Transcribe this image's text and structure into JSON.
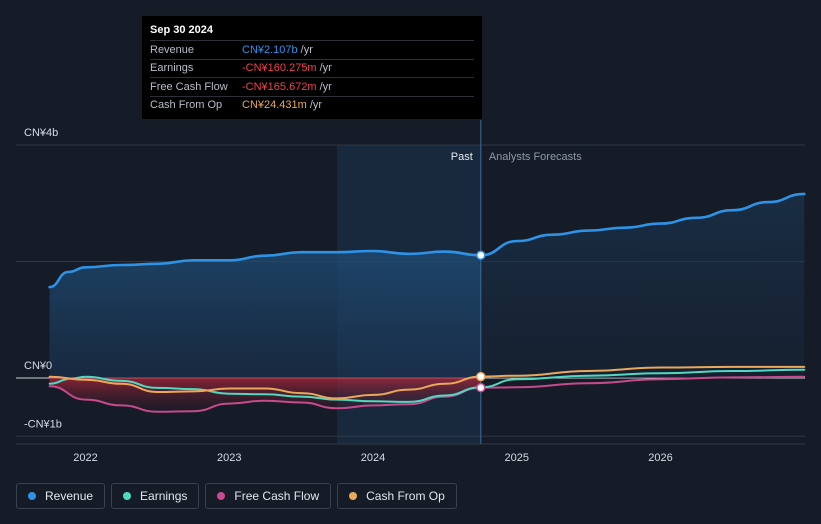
{
  "tooltip": {
    "date": "Sep 30 2024",
    "rows": [
      {
        "label": "Revenue",
        "value": "CN¥2.107b",
        "unit": "/yr",
        "color": "#2e93e6"
      },
      {
        "label": "Earnings",
        "value": "-CN¥160.275m",
        "unit": "/yr",
        "color": "#f0414b"
      },
      {
        "label": "Free Cash Flow",
        "value": "-CN¥165.672m",
        "unit": "/yr",
        "color": "#f0414b"
      },
      {
        "label": "Cash From Op",
        "value": "CN¥24.431m",
        "unit": "/yr",
        "color": "#e9a85c"
      }
    ]
  },
  "labels": {
    "past": "Past",
    "forecast": "Analysts Forecasts"
  },
  "legend": [
    {
      "label": "Revenue",
      "color": "#2e93e6"
    },
    {
      "label": "Earnings",
      "color": "#50d9c0"
    },
    {
      "label": "Free Cash Flow",
      "color": "#c54b8c"
    },
    {
      "label": "Cash From Op",
      "color": "#e9a85c"
    }
  ],
  "chart_data": {
    "type": "line",
    "y_unit": "CN¥ billion",
    "ylim": [
      -1,
      4
    ],
    "yticks": [
      {
        "value": 4,
        "label": "CN¥4b"
      },
      {
        "value": 0,
        "label": "CN¥0"
      },
      {
        "value": -1,
        "label": "-CN¥1b"
      }
    ],
    "xlim": [
      2021.7,
      2027.0
    ],
    "xticks": [
      {
        "value": 2022,
        "label": "2022"
      },
      {
        "value": 2023,
        "label": "2023"
      },
      {
        "value": 2024,
        "label": "2024"
      },
      {
        "value": 2025,
        "label": "2025"
      },
      {
        "value": 2026,
        "label": "2026"
      }
    ],
    "past_end": 2024.75,
    "highlight_start": 2023.75,
    "series": [
      {
        "name": "Revenue",
        "color": "#2e93e6",
        "points": [
          [
            2021.75,
            1.56
          ],
          [
            2021.88,
            1.82
          ],
          [
            2022.0,
            1.9
          ],
          [
            2022.25,
            1.94
          ],
          [
            2022.5,
            1.96
          ],
          [
            2022.75,
            2.02
          ],
          [
            2023.0,
            2.02
          ],
          [
            2023.25,
            2.1
          ],
          [
            2023.5,
            2.16
          ],
          [
            2023.75,
            2.16
          ],
          [
            2024.0,
            2.18
          ],
          [
            2024.25,
            2.13
          ],
          [
            2024.5,
            2.17
          ],
          [
            2024.75,
            2.107
          ],
          [
            2025.0,
            2.35
          ],
          [
            2025.25,
            2.46
          ],
          [
            2025.5,
            2.53
          ],
          [
            2025.75,
            2.58
          ],
          [
            2026.0,
            2.65
          ],
          [
            2026.25,
            2.75
          ],
          [
            2026.5,
            2.88
          ],
          [
            2026.75,
            3.02
          ],
          [
            2027.0,
            3.16
          ]
        ]
      },
      {
        "name": "Earnings",
        "color": "#50d9c0",
        "points": [
          [
            2021.75,
            -0.1
          ],
          [
            2021.9,
            -0.01
          ],
          [
            2022.0,
            0.02
          ],
          [
            2022.25,
            -0.05
          ],
          [
            2022.5,
            -0.17
          ],
          [
            2022.75,
            -0.19
          ],
          [
            2023.0,
            -0.27
          ],
          [
            2023.25,
            -0.28
          ],
          [
            2023.5,
            -0.32
          ],
          [
            2023.75,
            -0.37
          ],
          [
            2024.0,
            -0.4
          ],
          [
            2024.25,
            -0.41
          ],
          [
            2024.5,
            -0.3
          ],
          [
            2024.75,
            -0.16
          ],
          [
            2025.0,
            -0.02
          ],
          [
            2025.5,
            0.04
          ],
          [
            2026.0,
            0.08
          ],
          [
            2026.5,
            0.12
          ],
          [
            2027.0,
            0.14
          ]
        ]
      },
      {
        "name": "Free Cash Flow",
        "color": "#c54b8c",
        "points": [
          [
            2021.75,
            -0.14
          ],
          [
            2022.0,
            -0.37
          ],
          [
            2022.25,
            -0.47
          ],
          [
            2022.5,
            -0.58
          ],
          [
            2022.75,
            -0.57
          ],
          [
            2023.0,
            -0.44
          ],
          [
            2023.25,
            -0.39
          ],
          [
            2023.5,
            -0.42
          ],
          [
            2023.75,
            -0.52
          ],
          [
            2024.0,
            -0.47
          ],
          [
            2024.25,
            -0.45
          ],
          [
            2024.5,
            -0.32
          ],
          [
            2024.75,
            -0.166
          ],
          [
            2025.0,
            -0.16
          ],
          [
            2025.5,
            -0.09
          ],
          [
            2026.0,
            -0.02
          ],
          [
            2026.5,
            0.01
          ],
          [
            2027.0,
            0.02
          ]
        ]
      },
      {
        "name": "Cash From Op",
        "color": "#e9a85c",
        "points": [
          [
            2021.75,
            0.02
          ],
          [
            2022.0,
            -0.03
          ],
          [
            2022.25,
            -0.1
          ],
          [
            2022.5,
            -0.24
          ],
          [
            2022.75,
            -0.23
          ],
          [
            2023.0,
            -0.18
          ],
          [
            2023.25,
            -0.18
          ],
          [
            2023.5,
            -0.26
          ],
          [
            2023.75,
            -0.35
          ],
          [
            2024.0,
            -0.29
          ],
          [
            2024.25,
            -0.2
          ],
          [
            2024.5,
            -0.1
          ],
          [
            2024.75,
            0.024
          ],
          [
            2025.0,
            0.04
          ],
          [
            2025.5,
            0.12
          ],
          [
            2026.0,
            0.18
          ],
          [
            2026.5,
            0.19
          ],
          [
            2027.0,
            0.19
          ]
        ]
      }
    ]
  }
}
